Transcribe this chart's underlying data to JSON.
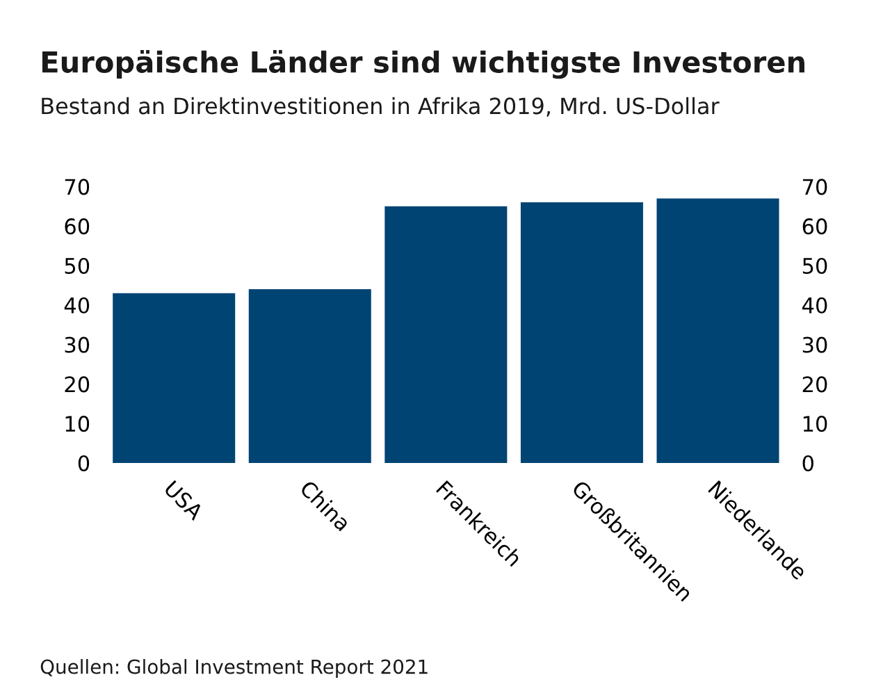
{
  "chart_data": {
    "type": "bar",
    "title": "Europäische Länder sind wichtigste Investoren",
    "subtitle": "Bestand an Direktinvestitionen in Afrika 2019, Mrd. US-Dollar",
    "categories": [
      "USA",
      "China",
      "Frankreich",
      "Großbritannien",
      "Niederlande"
    ],
    "values": [
      43,
      44,
      65,
      66,
      67
    ],
    "color": "#004474",
    "ylim": [
      0,
      70
    ],
    "yticks": [
      0,
      10,
      20,
      30,
      40,
      50,
      60,
      70
    ],
    "y2lim": [
      0,
      70
    ],
    "y2ticks": [
      0,
      10,
      20,
      30,
      40,
      50,
      60,
      70
    ],
    "grid": false,
    "annotations": [
      "Quellen: Global Investment Report 2021"
    ]
  }
}
